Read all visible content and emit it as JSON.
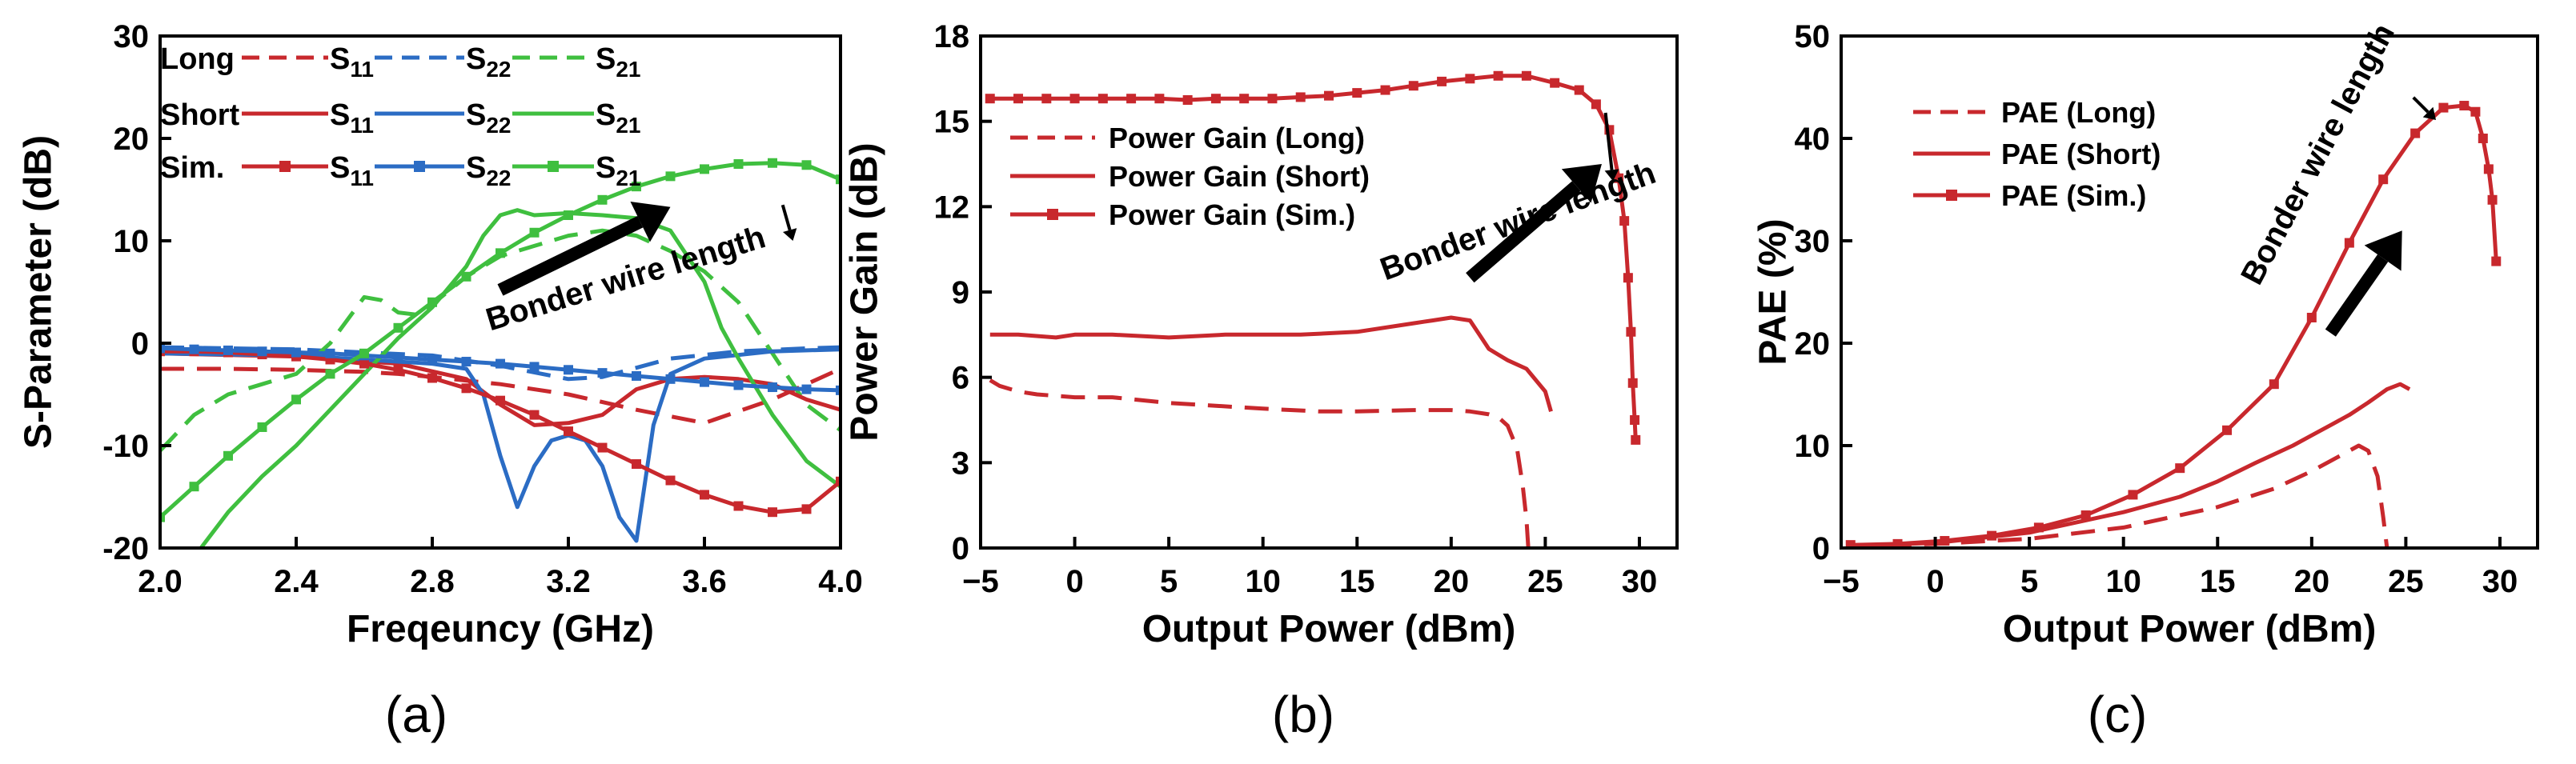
{
  "colors": {
    "red": "#c8282d",
    "blue": "#2b6cc4",
    "green": "#3fbf3f",
    "black": "#000000"
  },
  "chart_data": [
    {
      "type": "line",
      "id": "a",
      "caption": "(a)",
      "xlabel": "Freqeuncy (GHz)",
      "ylabel": "S-Parameter (dB)",
      "xlim": [
        2.0,
        4.0
      ],
      "ylim": [
        -20,
        30
      ],
      "xticks": [
        2.0,
        2.4,
        2.8,
        3.2,
        3.6,
        4.0
      ],
      "xtick_labels": [
        "2.0",
        "2.4",
        "2.8",
        "3.2",
        "3.6",
        "4.0"
      ],
      "yticks": [
        -20,
        -10,
        0,
        10,
        20,
        30
      ],
      "ytick_labels": [
        "-20",
        "-10",
        "0",
        "10",
        "20",
        "30"
      ],
      "legend": {
        "rows": [
          {
            "label": "Long",
            "entries": [
              {
                "label": "S",
                "sub": "11",
                "color": "red",
                "dash": "dash",
                "marker": false
              },
              {
                "label": "S",
                "sub": "22",
                "color": "blue",
                "dash": "dash",
                "marker": false
              },
              {
                "label": "S",
                "sub": "21",
                "color": "green",
                "dash": "dash",
                "marker": false
              }
            ]
          },
          {
            "label": "Short",
            "entries": [
              {
                "label": "S",
                "sub": "11",
                "color": "red",
                "dash": "solid",
                "marker": false
              },
              {
                "label": "S",
                "sub": "22",
                "color": "blue",
                "dash": "solid",
                "marker": false
              },
              {
                "label": "S",
                "sub": "21",
                "color": "green",
                "dash": "solid",
                "marker": false
              }
            ]
          },
          {
            "label": "Sim.",
            "entries": [
              {
                "label": "S",
                "sub": "11",
                "color": "red",
                "dash": "solid",
                "marker": true
              },
              {
                "label": "S",
                "sub": "22",
                "color": "blue",
                "dash": "solid",
                "marker": true
              },
              {
                "label": "S",
                "sub": "21",
                "color": "green",
                "dash": "solid",
                "marker": true
              }
            ]
          }
        ]
      },
      "annotation": {
        "text": "Bonder wire length",
        "from": [
          3.0,
          5.2
        ],
        "to": [
          3.5,
          13.3
        ],
        "text_at": [
          2.97,
          1.2
        ],
        "text_angle": -17,
        "small_arrow": {
          "from": [
            3.83,
            13.5
          ],
          "to": [
            3.86,
            10.0
          ]
        }
      },
      "series": [
        {
          "name": "Long S11",
          "color": "red",
          "dash": "dash",
          "marker": false,
          "x": [
            2.0,
            2.2,
            2.4,
            2.6,
            2.7,
            2.8,
            3.0,
            3.2,
            3.4,
            3.6,
            3.8,
            3.9,
            4.0
          ],
          "y": [
            -2.5,
            -2.5,
            -2.6,
            -2.8,
            -3.0,
            -3.3,
            -4.0,
            -5.0,
            -6.5,
            -7.8,
            -5.5,
            -4.0,
            -2.5
          ]
        },
        {
          "name": "Long S22",
          "color": "blue",
          "dash": "dash",
          "marker": false,
          "x": [
            2.0,
            2.4,
            2.8,
            3.0,
            3.2,
            3.3,
            3.5,
            3.7,
            3.9,
            4.0
          ],
          "y": [
            -0.4,
            -0.6,
            -1.2,
            -2.2,
            -3.5,
            -3.3,
            -1.5,
            -0.8,
            -0.5,
            -0.4
          ]
        },
        {
          "name": "Long S21",
          "color": "green",
          "dash": "dash",
          "marker": false,
          "x": [
            2.0,
            2.1,
            2.2,
            2.3,
            2.4,
            2.5,
            2.6,
            2.65,
            2.7,
            2.75,
            2.8,
            2.9,
            3.0,
            3.1,
            3.2,
            3.3,
            3.4,
            3.5,
            3.6,
            3.7,
            3.8,
            3.9,
            4.0
          ],
          "y": [
            -10.5,
            -7.0,
            -5.0,
            -4.0,
            -3.0,
            0.0,
            4.5,
            4.2,
            3.0,
            2.8,
            3.8,
            6.5,
            8.5,
            9.5,
            10.5,
            11.0,
            10.5,
            9.0,
            7.0,
            4.0,
            -1.0,
            -6.0,
            -8.5
          ]
        },
        {
          "name": "Short S11",
          "color": "red",
          "dash": "solid",
          "marker": false,
          "x": [
            2.0,
            2.4,
            2.7,
            2.9,
            3.0,
            3.1,
            3.2,
            3.3,
            3.4,
            3.5,
            3.6,
            3.7,
            3.8,
            3.9,
            4.0
          ],
          "y": [
            -1.0,
            -1.3,
            -2.0,
            -3.5,
            -6.0,
            -8.0,
            -7.8,
            -7.0,
            -4.5,
            -3.5,
            -3.3,
            -3.5,
            -4.0,
            -5.5,
            -6.5
          ]
        },
        {
          "name": "Short S22",
          "color": "blue",
          "dash": "solid",
          "marker": false,
          "x": [
            2.0,
            2.4,
            2.8,
            2.9,
            2.95,
            3.0,
            3.05,
            3.1,
            3.15,
            3.2,
            3.25,
            3.3,
            3.35,
            3.4,
            3.45,
            3.5,
            3.6,
            3.8,
            4.0
          ],
          "y": [
            -1.0,
            -1.2,
            -2.0,
            -2.5,
            -5.0,
            -11.0,
            -16.0,
            -12.0,
            -9.5,
            -9.0,
            -9.5,
            -12.0,
            -17.0,
            -19.3,
            -8.0,
            -3.0,
            -1.5,
            -0.8,
            -0.6
          ]
        },
        {
          "name": "Short S21",
          "color": "green",
          "dash": "solid",
          "marker": false,
          "x": [
            2.12,
            2.2,
            2.3,
            2.4,
            2.5,
            2.6,
            2.7,
            2.8,
            2.9,
            2.95,
            3.0,
            3.05,
            3.1,
            3.2,
            3.3,
            3.4,
            3.5,
            3.6,
            3.65,
            3.7,
            3.8,
            3.9,
            4.0
          ],
          "y": [
            -20.0,
            -16.5,
            -13.0,
            -10.0,
            -6.5,
            -3.0,
            0.5,
            3.5,
            7.5,
            10.5,
            12.5,
            13.0,
            12.5,
            12.7,
            12.5,
            12.2,
            11.0,
            6.0,
            1.5,
            -1.5,
            -7.0,
            -11.5,
            -14.0
          ]
        },
        {
          "name": "Sim. S11",
          "color": "red",
          "dash": "solid",
          "marker": true,
          "x": [
            2.0,
            2.1,
            2.2,
            2.3,
            2.4,
            2.5,
            2.6,
            2.7,
            2.8,
            2.9,
            3.0,
            3.1,
            3.2,
            3.3,
            3.4,
            3.5,
            3.6,
            3.7,
            3.8,
            3.9,
            4.0
          ],
          "y": [
            -0.8,
            -0.8,
            -0.9,
            -1.1,
            -1.3,
            -1.6,
            -2.0,
            -2.6,
            -3.4,
            -4.4,
            -5.6,
            -7.0,
            -8.6,
            -10.2,
            -11.8,
            -13.4,
            -14.8,
            -15.9,
            -16.5,
            -16.2,
            -13.5
          ]
        },
        {
          "name": "Sim. S22",
          "color": "blue",
          "dash": "solid",
          "marker": true,
          "x": [
            2.0,
            2.1,
            2.2,
            2.3,
            2.4,
            2.5,
            2.6,
            2.7,
            2.8,
            2.9,
            3.0,
            3.1,
            3.2,
            3.3,
            3.4,
            3.5,
            3.6,
            3.7,
            3.8,
            3.9,
            4.0
          ],
          "y": [
            -0.5,
            -0.6,
            -0.7,
            -0.8,
            -0.9,
            -1.0,
            -1.2,
            -1.4,
            -1.6,
            -1.8,
            -2.0,
            -2.3,
            -2.6,
            -2.9,
            -3.2,
            -3.5,
            -3.8,
            -4.1,
            -4.3,
            -4.5,
            -4.6
          ]
        },
        {
          "name": "Sim. S21",
          "color": "green",
          "dash": "solid",
          "marker": true,
          "x": [
            2.0,
            2.1,
            2.2,
            2.3,
            2.4,
            2.5,
            2.6,
            2.7,
            2.8,
            2.9,
            3.0,
            3.1,
            3.2,
            3.3,
            3.4,
            3.5,
            3.6,
            3.7,
            3.8,
            3.9,
            4.0
          ],
          "y": [
            -17.0,
            -14.0,
            -11.0,
            -8.2,
            -5.5,
            -3.0,
            -1.0,
            1.5,
            4.0,
            6.5,
            8.8,
            10.8,
            12.5,
            14.0,
            15.3,
            16.3,
            17.0,
            17.5,
            17.6,
            17.4,
            16.0
          ]
        }
      ]
    },
    {
      "type": "line",
      "id": "b",
      "caption": "(b)",
      "xlabel": "Output Power (dBm)",
      "ylabel": "Power Gain (dB)",
      "xlim": [
        -5,
        32
      ],
      "ylim": [
        0,
        18
      ],
      "xticks": [
        -5,
        0,
        5,
        10,
        15,
        20,
        25,
        30
      ],
      "xtick_labels": [
        "−5",
        "0",
        "5",
        "10",
        "15",
        "20",
        "25",
        "30"
      ],
      "yticks": [
        0,
        3,
        6,
        9,
        12,
        15,
        18
      ],
      "ytick_labels": [
        "0",
        "3",
        "6",
        "9",
        "12",
        "15",
        "18"
      ],
      "legend": {
        "entries": [
          {
            "label": "Power Gain (Long)",
            "color": "red",
            "dash": "dash",
            "marker": false
          },
          {
            "label": "Power Gain (Short)",
            "color": "red",
            "dash": "solid",
            "marker": false
          },
          {
            "label": "Power Gain (Sim.)",
            "color": "red",
            "dash": "solid",
            "marker": true
          }
        ]
      },
      "annotation": {
        "text": "Bonder wire length",
        "from": [
          21.0,
          9.5
        ],
        "to": [
          28.0,
          13.5
        ],
        "text_at": [
          16.5,
          9.4
        ],
        "text_angle": -20,
        "small_arrow": {
          "from": [
            28.2,
            15.3
          ],
          "to": [
            28.6,
            12.9
          ]
        }
      },
      "series": [
        {
          "name": "Power Gain (Long)",
          "color": "red",
          "dash": "dash",
          "marker": false,
          "x": [
            -4.5,
            -4.0,
            -3.0,
            -2.0,
            0,
            2,
            5,
            10,
            13,
            15,
            18,
            20,
            21,
            22,
            22.5,
            23,
            23.5,
            23.8,
            24.0,
            24.1
          ],
          "y": [
            5.9,
            5.7,
            5.5,
            5.4,
            5.3,
            5.3,
            5.1,
            4.9,
            4.8,
            4.8,
            4.85,
            4.85,
            4.8,
            4.7,
            4.6,
            4.3,
            3.5,
            2.2,
            1.0,
            0.0
          ]
        },
        {
          "name": "Power Gain (Short)",
          "color": "red",
          "dash": "solid",
          "marker": false,
          "x": [
            -4.5,
            -3,
            -1,
            0,
            2,
            5,
            8,
            10,
            12,
            15,
            18,
            19,
            20,
            21,
            21.5,
            22,
            22.5,
            23,
            24,
            25,
            25.3
          ],
          "y": [
            7.5,
            7.5,
            7.4,
            7.5,
            7.5,
            7.4,
            7.5,
            7.5,
            7.5,
            7.6,
            7.9,
            8.0,
            8.1,
            8.0,
            7.5,
            7.0,
            6.8,
            6.6,
            6.3,
            5.5,
            4.8
          ]
        },
        {
          "name": "Power Gain (Sim.)",
          "color": "red",
          "dash": "solid",
          "marker": true,
          "x": [
            -4.5,
            -3,
            -1.5,
            0,
            1.5,
            3,
            4.5,
            6,
            7.5,
            9,
            10.5,
            12,
            13.5,
            15,
            16.5,
            18,
            19.5,
            21,
            22.5,
            24,
            25.5,
            26.8,
            27.7,
            28.4,
            28.9,
            29.2,
            29.4,
            29.55,
            29.65,
            29.75,
            29.8
          ],
          "y": [
            15.8,
            15.8,
            15.8,
            15.8,
            15.8,
            15.8,
            15.8,
            15.75,
            15.8,
            15.8,
            15.8,
            15.85,
            15.9,
            16.0,
            16.1,
            16.25,
            16.4,
            16.5,
            16.6,
            16.6,
            16.35,
            16.1,
            15.6,
            14.7,
            13.0,
            11.5,
            9.5,
            7.6,
            5.8,
            4.5,
            3.8
          ]
        }
      ]
    },
    {
      "type": "line",
      "id": "c",
      "caption": "(c)",
      "xlabel": "Output Power (dBm)",
      "ylabel": "PAE (%)",
      "xlim": [
        -5,
        32
      ],
      "ylim": [
        0,
        50
      ],
      "xticks": [
        -5,
        0,
        5,
        10,
        15,
        20,
        25,
        30
      ],
      "xtick_labels": [
        "−5",
        "0",
        "5",
        "10",
        "15",
        "20",
        "25",
        "30"
      ],
      "yticks": [
        0,
        10,
        20,
        30,
        40,
        50
      ],
      "ytick_labels": [
        "0",
        "10",
        "20",
        "30",
        "40",
        "50"
      ],
      "legend": {
        "entries": [
          {
            "label": "PAE (Long)",
            "color": "red",
            "dash": "dash",
            "marker": false
          },
          {
            "label": "PAE (Short)",
            "color": "red",
            "dash": "solid",
            "marker": false
          },
          {
            "label": "PAE (Sim.)",
            "color": "red",
            "dash": "solid",
            "marker": true
          }
        ]
      },
      "annotation": {
        "text": "Bonder wire length",
        "from": [
          21.0,
          21.0
        ],
        "to": [
          24.8,
          31.0
        ],
        "text_at": [
          17.2,
          25.5
        ],
        "text_angle": -62,
        "small_arrow": {
          "from": [
            25.4,
            44.0
          ],
          "to": [
            26.6,
            41.8
          ]
        }
      },
      "series": [
        {
          "name": "PAE (Long)",
          "color": "red",
          "dash": "dash",
          "marker": false,
          "x": [
            -4.5,
            0,
            5,
            10,
            15,
            18,
            20,
            21,
            22,
            22.5,
            23,
            23.5,
            23.8,
            24.0
          ],
          "y": [
            0.2,
            0.4,
            0.9,
            2.0,
            4.0,
            5.8,
            7.5,
            8.5,
            9.5,
            10.0,
            9.5,
            7.0,
            3.0,
            0.0
          ]
        },
        {
          "name": "PAE (Short)",
          "color": "red",
          "dash": "solid",
          "marker": false,
          "x": [
            -4.5,
            0,
            5,
            10,
            13,
            15,
            17,
            19,
            20,
            21,
            22,
            23,
            24,
            24.7,
            25.2
          ],
          "y": [
            0.2,
            0.5,
            1.5,
            3.5,
            5.0,
            6.5,
            8.3,
            10.0,
            11.0,
            12.0,
            13.0,
            14.2,
            15.5,
            16.0,
            15.5
          ]
        },
        {
          "name": "PAE (Sim.)",
          "color": "red",
          "dash": "solid",
          "marker": true,
          "x": [
            -4.5,
            -2,
            0.5,
            3,
            5.5,
            8,
            10.5,
            13,
            15.5,
            18,
            20,
            22,
            23.8,
            25.5,
            27,
            28.1,
            28.7,
            29.1,
            29.4,
            29.6,
            29.8
          ],
          "y": [
            0.3,
            0.4,
            0.7,
            1.2,
            2.0,
            3.2,
            5.2,
            7.8,
            11.5,
            16.0,
            22.5,
            29.8,
            36.0,
            40.5,
            43.0,
            43.2,
            42.6,
            40.0,
            37.0,
            34.0,
            28.0
          ]
        }
      ]
    }
  ]
}
